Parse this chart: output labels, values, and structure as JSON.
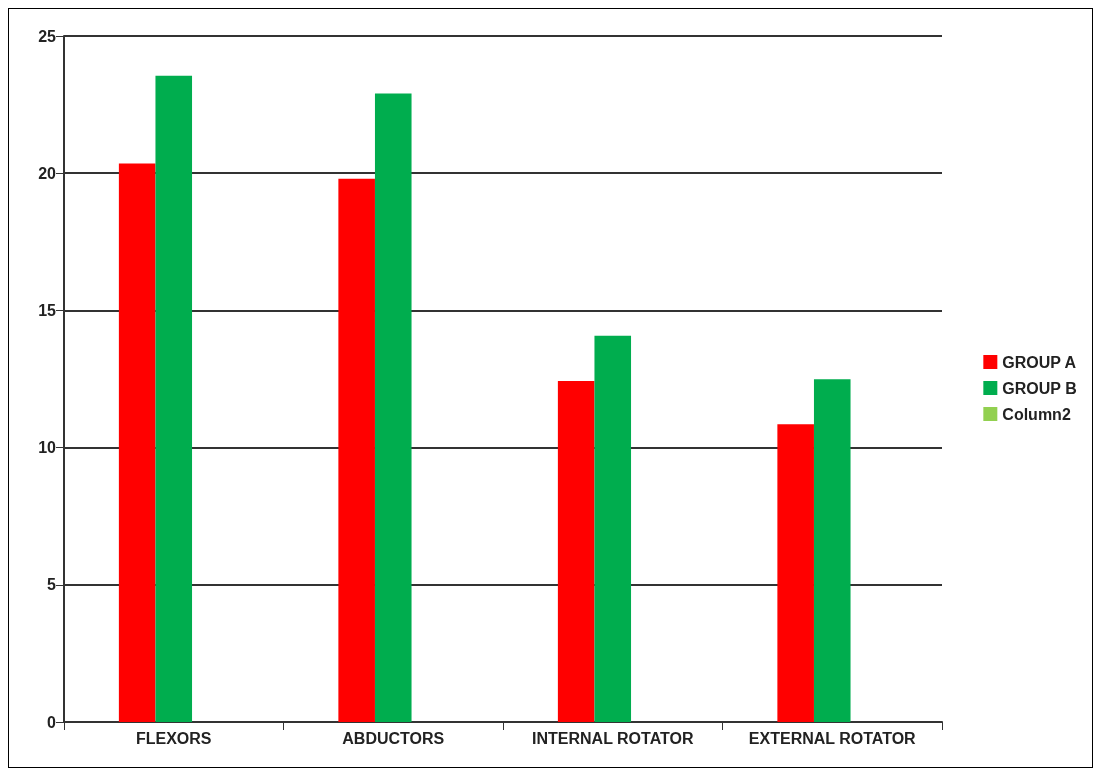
{
  "chart_data": {
    "type": "bar",
    "categories": [
      "FLEXORS",
      "ABDUCTORS",
      "INTERNAL ROTATOR",
      "EXTERNAL ROTATOR"
    ],
    "series": [
      {
        "name": "GROUP A",
        "color": "#ff0000",
        "values": [
          20.35,
          19.8,
          12.43,
          10.85
        ]
      },
      {
        "name": "GROUP B",
        "color": "#00ad4e",
        "values": [
          23.55,
          22.9,
          14.08,
          12.49
        ]
      },
      {
        "name": "Column2",
        "color": "#92d050",
        "values": [
          null,
          null,
          null,
          null
        ]
      }
    ],
    "ylim": [
      0,
      25
    ],
    "yticks": [
      0,
      5,
      10,
      15,
      20,
      25
    ],
    "grid": "y",
    "legend": "right"
  }
}
